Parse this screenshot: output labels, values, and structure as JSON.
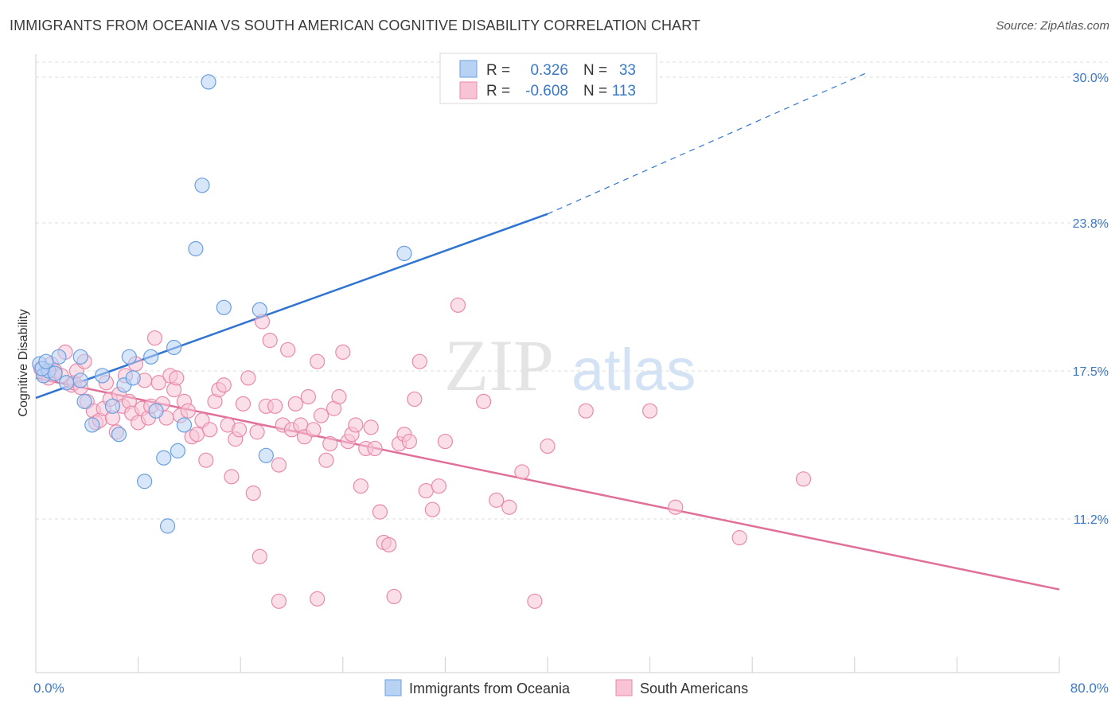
{
  "title": "IMMIGRANTS FROM OCEANIA VS SOUTH AMERICAN COGNITIVE DISABILITY CORRELATION CHART",
  "source": "Source: ZipAtlas.com",
  "watermark": {
    "part1": "ZIP",
    "part2": "atlas"
  },
  "colors": {
    "oceania_fill": "#b8d2f4",
    "oceania_stroke": "#6a9fe0",
    "oceania_line": "#2f74d0",
    "south_fill": "#f8c4d5",
    "south_stroke": "#e98aaa",
    "south_line": "#e0709a",
    "tick_text": "#3a78c8",
    "grid": "#dedede"
  },
  "stats": [
    {
      "r_label": "R =",
      "r_value": "0.326",
      "n_label": "N =",
      "n_value": "33"
    },
    {
      "r_label": "R =",
      "r_value": "-0.608",
      "n_label": "N =",
      "n_value": "113"
    }
  ],
  "chart_data": {
    "type": "scatter",
    "title": "IMMIGRANTS FROM OCEANIA VS SOUTH AMERICAN COGNITIVE DISABILITY CORRELATION CHART",
    "xlabel": "",
    "ylabel": "Cognitive Disability",
    "xlim": [
      0,
      80
    ],
    "ylim": [
      5.0,
      31.0
    ],
    "x_tick_labels": [
      "0.0%",
      "80.0%"
    ],
    "y_ticks": [
      11.2,
      17.5,
      23.8,
      30.0
    ],
    "y_tick_labels": [
      "11.2%",
      "17.5%",
      "23.8%",
      "30.0%"
    ],
    "grid": true,
    "legend_position": "bottom-center",
    "series": [
      {
        "name": "Immigrants from Oceania",
        "x": [
          0.3,
          0.6,
          1.0,
          1.5,
          1.8,
          2.4,
          3.5,
          3.5,
          3.8,
          4.4,
          5.2,
          6.0,
          6.5,
          6.9,
          7.3,
          7.6,
          8.5,
          9.0,
          9.4,
          10.0,
          10.3,
          10.8,
          11.1,
          11.6,
          12.5,
          13.0,
          13.5,
          14.7,
          17.5,
          18.0,
          28.8,
          0.5,
          0.8
        ],
        "y": [
          17.8,
          17.3,
          17.5,
          17.4,
          18.1,
          17.0,
          18.1,
          17.1,
          16.2,
          15.2,
          17.3,
          16.0,
          14.8,
          16.9,
          18.1,
          17.2,
          12.8,
          18.1,
          15.8,
          13.8,
          10.9,
          18.5,
          14.1,
          15.2,
          22.7,
          25.4,
          29.8,
          20.2,
          20.1,
          13.9,
          22.5,
          17.6,
          17.9
        ]
      },
      {
        "name": "South Americans",
        "x": [
          0.4,
          0.7,
          1.0,
          1.2,
          1.5,
          2.0,
          2.3,
          2.8,
          3.0,
          3.2,
          3.5,
          3.8,
          4.0,
          4.5,
          4.7,
          5.0,
          5.3,
          5.5,
          5.8,
          6.0,
          6.3,
          6.5,
          6.8,
          7.0,
          7.3,
          7.5,
          7.8,
          8.0,
          8.3,
          8.5,
          8.8,
          9.0,
          9.3,
          9.6,
          9.9,
          10.2,
          10.5,
          10.8,
          11.0,
          11.3,
          11.6,
          11.9,
          12.2,
          12.6,
          13.0,
          13.3,
          13.6,
          14.0,
          14.3,
          14.7,
          15.0,
          15.3,
          15.6,
          15.9,
          16.2,
          16.6,
          17.0,
          17.3,
          17.7,
          18.0,
          18.3,
          18.7,
          19.0,
          19.3,
          19.7,
          20.0,
          20.3,
          20.7,
          21.0,
          21.3,
          21.7,
          22.0,
          22.3,
          22.7,
          23.0,
          23.3,
          23.7,
          24.0,
          24.4,
          24.7,
          25.0,
          25.4,
          25.8,
          26.2,
          26.5,
          26.9,
          27.2,
          27.6,
          28.0,
          28.4,
          28.8,
          29.2,
          29.6,
          30.0,
          30.5,
          31.0,
          31.5,
          32.0,
          33.0,
          35.0,
          36.0,
          37.0,
          38.0,
          39.0,
          40.0,
          43.0,
          48.0,
          50.0,
          55.0,
          60.0,
          17.5,
          19.0,
          22.0
        ],
        "y": [
          17.6,
          17.4,
          17.2,
          17.8,
          17.5,
          17.3,
          18.3,
          16.9,
          17.0,
          17.5,
          16.8,
          17.9,
          16.2,
          15.8,
          15.3,
          15.4,
          15.9,
          17.0,
          16.3,
          15.5,
          14.9,
          16.5,
          16.0,
          17.3,
          16.2,
          15.7,
          17.8,
          15.3,
          15.9,
          17.1,
          15.5,
          16.0,
          18.9,
          17.0,
          16.1,
          15.5,
          17.3,
          16.7,
          17.2,
          15.6,
          16.2,
          15.8,
          14.7,
          14.8,
          15.4,
          13.7,
          15.0,
          16.2,
          16.7,
          16.9,
          15.2,
          13.0,
          14.6,
          15.0,
          16.1,
          17.2,
          12.3,
          14.9,
          19.6,
          16.0,
          18.8,
          16.0,
          13.5,
          15.2,
          18.4,
          15.0,
          16.1,
          15.2,
          14.7,
          16.4,
          15.0,
          17.9,
          15.6,
          13.7,
          14.4,
          15.9,
          16.4,
          18.3,
          14.5,
          14.8,
          15.2,
          12.6,
          14.2,
          15.1,
          14.2,
          11.5,
          10.2,
          10.1,
          7.9,
          14.4,
          14.8,
          14.5,
          16.3,
          17.9,
          12.4,
          11.6,
          12.6,
          14.5,
          20.3,
          16.2,
          12.0,
          11.7,
          13.2,
          7.7,
          14.3,
          15.8,
          15.8,
          11.7,
          10.4,
          12.9,
          9.6,
          7.7,
          7.8
        ]
      }
    ],
    "trendlines": [
      {
        "series": "Immigrants from Oceania",
        "x": [
          0,
          40
        ],
        "y": [
          16.35,
          24.18
        ],
        "extension_x": [
          40,
          65
        ],
        "extension_y": [
          24.18,
          30.2
        ],
        "extension_style": "dashed"
      },
      {
        "series": "South Americans",
        "x": [
          0,
          80
        ],
        "y": [
          17.2,
          8.2
        ]
      }
    ]
  }
}
